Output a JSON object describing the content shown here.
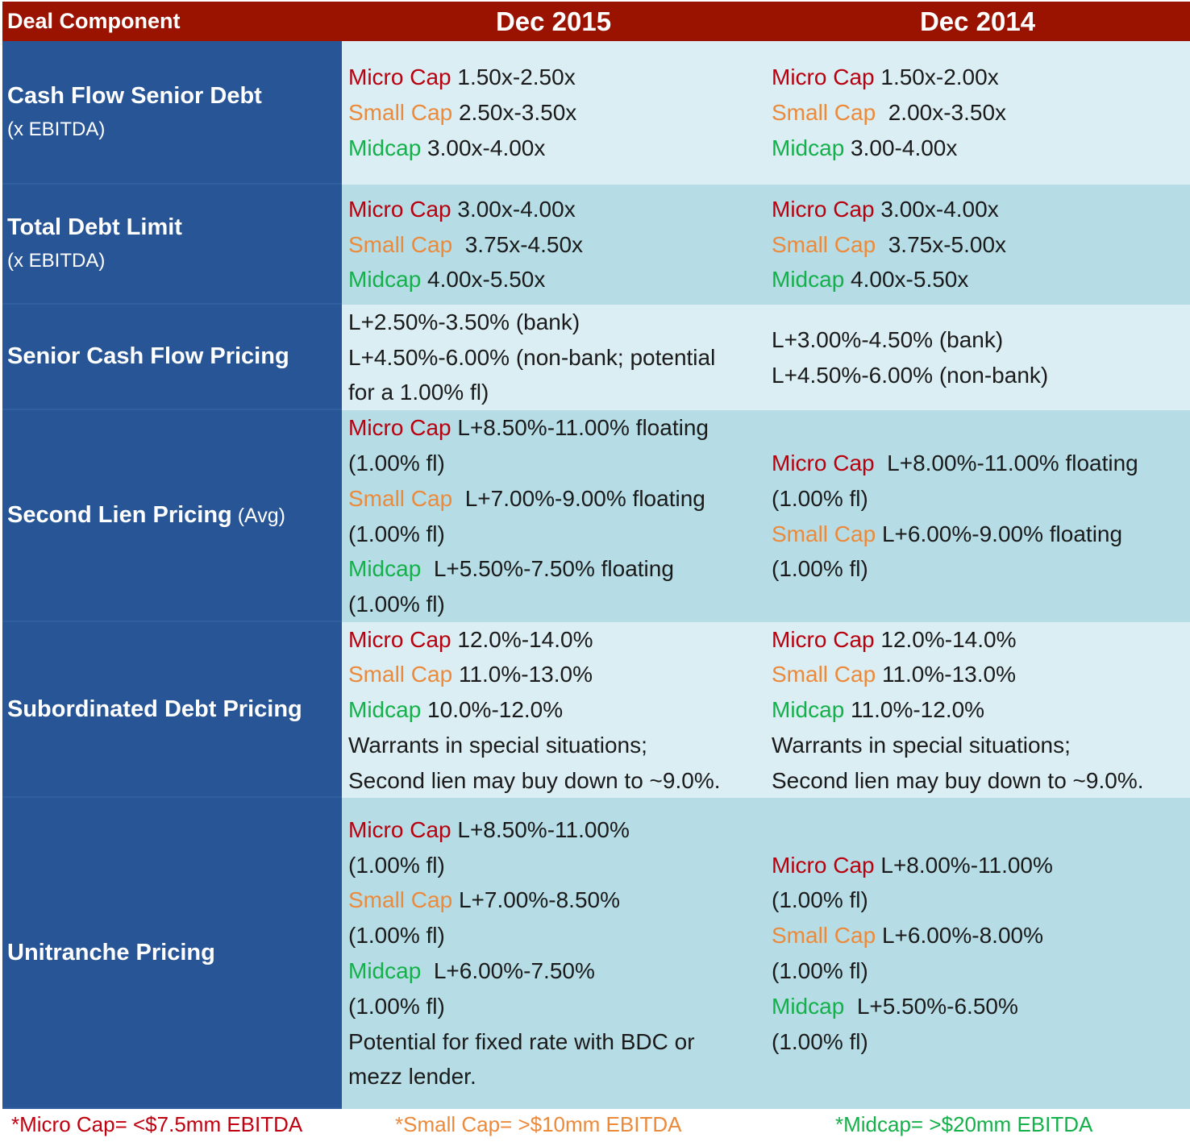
{
  "header": {
    "col0": "Deal Component",
    "col1": "Dec 2015",
    "col2": "Dec 2014"
  },
  "rows": [
    {
      "title": "Cash Flow Senior Debt",
      "title_note": "",
      "subtitle": "(x EBITDA)",
      "dec2015": [
        {
          "label": "Micro Cap",
          "value": " 1.50x-2.50x",
          "color": "#b8000e"
        },
        {
          "label": "Small Cap",
          "value": " 2.50x-3.50x",
          "color": "#ec8a3c"
        },
        {
          "label": "Midcap",
          "value": " 3.00x-4.00x",
          "color": "#14b04a"
        }
      ],
      "dec2014": [
        {
          "label": "Micro Cap",
          "value": " 1.50x-2.00x",
          "color": "#b8000e"
        },
        {
          "label": "Small Cap",
          "value": "  2.00x-3.50x",
          "color": "#ec8a3c"
        },
        {
          "label": "Midcap",
          "value": " 3.00-4.00x",
          "color": "#14b04a"
        }
      ]
    },
    {
      "title": "Total Debt Limit",
      "title_note": "",
      "subtitle": "(x EBITDA)",
      "dec2015": [
        {
          "label": "Micro Cap",
          "value": " 3.00x-4.00x",
          "color": "#b8000e"
        },
        {
          "label": "Small Cap",
          "value": "  3.75x-4.50x",
          "color": "#ec8a3c"
        },
        {
          "label": "Midcap",
          "value": " 4.00x-5.50x",
          "color": "#14b04a"
        }
      ],
      "dec2014": [
        {
          "label": "Micro Cap",
          "value": " 3.00x-4.00x",
          "color": "#b8000e"
        },
        {
          "label": "Small Cap",
          "value": "  3.75x-5.00x",
          "color": "#ec8a3c"
        },
        {
          "label": "Midcap",
          "value": " 4.00x-5.50x",
          "color": "#14b04a"
        }
      ]
    },
    {
      "title": "Senior Cash Flow Pricing",
      "title_note": "",
      "subtitle": "",
      "dec2015": [
        {
          "label": "",
          "value": "L+2.50%-3.50% (bank)"
        },
        {
          "label": "",
          "value": "L+4.50%-6.00% (non-bank; potential"
        },
        {
          "label": "",
          "value": "for a 1.00% fl)"
        }
      ],
      "dec2014": [
        {
          "label": "",
          "value": "L+3.00%-4.50% (bank)"
        },
        {
          "label": "",
          "value": "L+4.50%-6.00% (non-bank)"
        }
      ]
    },
    {
      "title": "Second Lien Pricing",
      "title_note": " (Avg)",
      "subtitle": "",
      "dec2015": [
        {
          "label": "Micro Cap",
          "value": " L+8.50%-11.00% floating",
          "color": "#b8000e"
        },
        {
          "label": "",
          "value": "(1.00% fl)"
        },
        {
          "label": "Small Cap",
          "value": "  L+7.00%-9.00% floating",
          "color": "#ec8a3c"
        },
        {
          "label": "",
          "value": "(1.00% fl)"
        },
        {
          "label": "Midcap",
          "value": "  L+5.50%-7.50% floating",
          "color": "#14b04a"
        },
        {
          "label": "",
          "value": "(1.00% fl)"
        }
      ],
      "dec2014": [
        {
          "label": "Micro Cap",
          "value": "  L+8.00%-11.00% floating",
          "color": "#b8000e"
        },
        {
          "label": "",
          "value": "(1.00% fl)"
        },
        {
          "label": "Small Cap",
          "value": " L+6.00%-9.00% floating",
          "color": "#ec8a3c"
        },
        {
          "label": "",
          "value": "(1.00% fl)"
        }
      ]
    },
    {
      "title": "Subordinated Debt Pricing",
      "title_note": "",
      "subtitle": "",
      "dec2015": [
        {
          "label": "Micro Cap",
          "value": " 12.0%-14.0%",
          "color": "#b8000e"
        },
        {
          "label": "Small Cap",
          "value": " 11.0%-13.0%",
          "color": "#ec8a3c"
        },
        {
          "label": "Midcap",
          "value": " 10.0%-12.0%",
          "color": "#14b04a"
        },
        {
          "label": "",
          "value": "Warrants in special situations;"
        },
        {
          "label": "",
          "value": "Second lien may buy down to ~9.0%."
        }
      ],
      "dec2014": [
        {
          "label": "Micro Cap",
          "value": " 12.0%-14.0%",
          "color": "#b8000e"
        },
        {
          "label": "Small Cap",
          "value": " 11.0%-13.0%",
          "color": "#ec8a3c"
        },
        {
          "label": "Midcap",
          "value": " 11.0%-12.0%",
          "color": "#14b04a"
        },
        {
          "label": "",
          "value": "Warrants in special situations;"
        },
        {
          "label": "",
          "value": "Second lien may buy down to ~9.0%."
        }
      ]
    },
    {
      "title": "Unitranche Pricing",
      "title_note": "",
      "subtitle": "",
      "dec2015": [
        {
          "label": "Micro Cap",
          "value": " L+8.50%-11.00%",
          "color": "#b8000e"
        },
        {
          "label": "",
          "value": "(1.00% fl)"
        },
        {
          "label": "Small Cap",
          "value": " L+7.00%-8.50%",
          "color": "#ec8a3c"
        },
        {
          "label": "",
          "value": "(1.00% fl)"
        },
        {
          "label": "Midcap",
          "value": "  L+6.00%-7.50%",
          "color": "#14b04a"
        },
        {
          "label": "",
          "value": "(1.00% fl)"
        },
        {
          "label": "",
          "value": "Potential for fixed rate with BDC or"
        },
        {
          "label": "",
          "value": "mezz lender."
        }
      ],
      "dec2014": [
        {
          "label": "Micro Cap",
          "value": " L+8.00%-11.00%",
          "color": "#b8000e"
        },
        {
          "label": "",
          "value": "(1.00% fl)"
        },
        {
          "label": "Small Cap",
          "value": " L+6.00%-8.00%",
          "color": "#ec8a3c"
        },
        {
          "label": "",
          "value": "(1.00% fl)"
        },
        {
          "label": "Midcap",
          "value": "  L+5.50%-6.50%",
          "color": "#14b04a"
        },
        {
          "label": "",
          "value": "(1.00% fl)"
        }
      ]
    }
  ],
  "footnotes": {
    "micro": "*Micro Cap= <$7.5mm EBITDA",
    "small": "*Small Cap= >$10mm EBITDA",
    "mid": "*Midcap= >$20mm EBITDA"
  },
  "colors": {
    "header_bg": "#9a1200",
    "left_col_bg": "#285595",
    "cell_light": "#dbeef4",
    "cell_dark": "#b6dde6",
    "micro_cap": "#b8000e",
    "small_cap": "#ec8a3c",
    "midcap": "#14b04a"
  }
}
